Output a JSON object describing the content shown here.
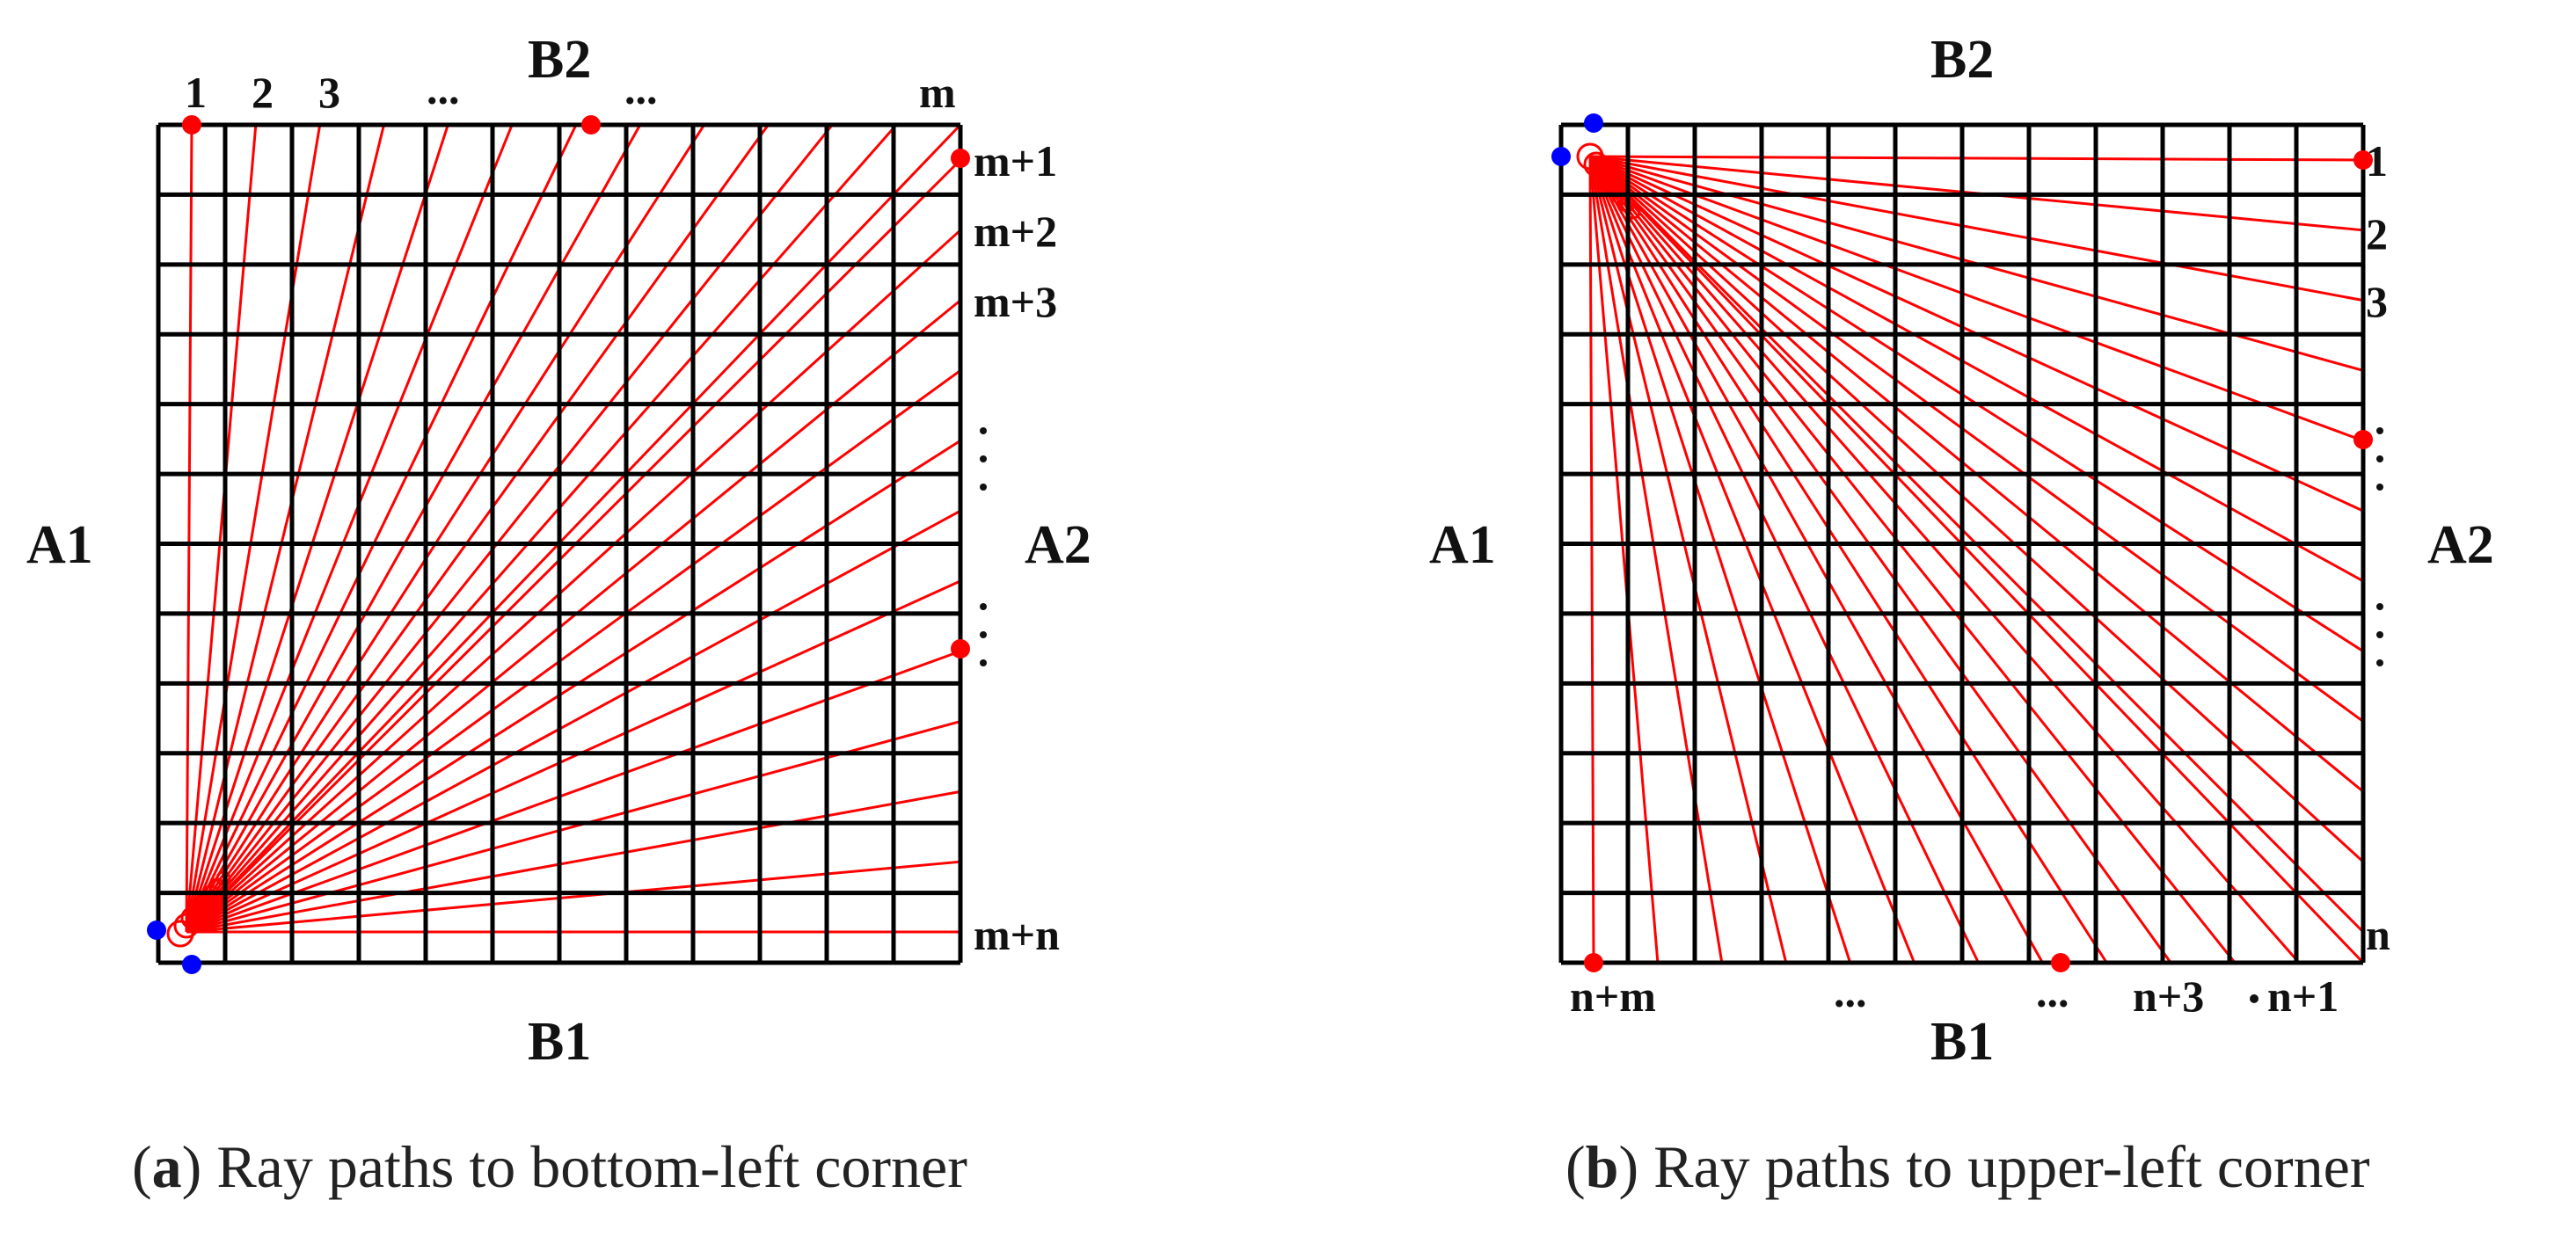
{
  "panel_a": {
    "labels": {
      "left": "A1",
      "right": "A2",
      "top": "B2",
      "bottom": "B1",
      "top_numbers": [
        "1",
        "2",
        "3",
        "m"
      ],
      "right_numbers": [
        "m+1",
        "m+2",
        "m+3",
        "m+n"
      ]
    },
    "caption": {
      "letter": "a",
      "text": "Ray paths to bottom-left corner"
    }
  },
  "panel_b": {
    "labels": {
      "left": "A1",
      "right": "A2",
      "top": "B2",
      "bottom": "B1",
      "right_numbers": [
        "1",
        "2",
        "3",
        "n"
      ],
      "bottom_numbers": [
        "n+m",
        "n+3",
        "n+1"
      ]
    },
    "caption": {
      "letter": "b",
      "text": "Ray paths to upper-left corner"
    }
  },
  "ellipsis": "...",
  "colors": {
    "grid": "#000000",
    "ray": "#ff0000",
    "source": "#0000ff",
    "receiver": "#ff0000"
  }
}
